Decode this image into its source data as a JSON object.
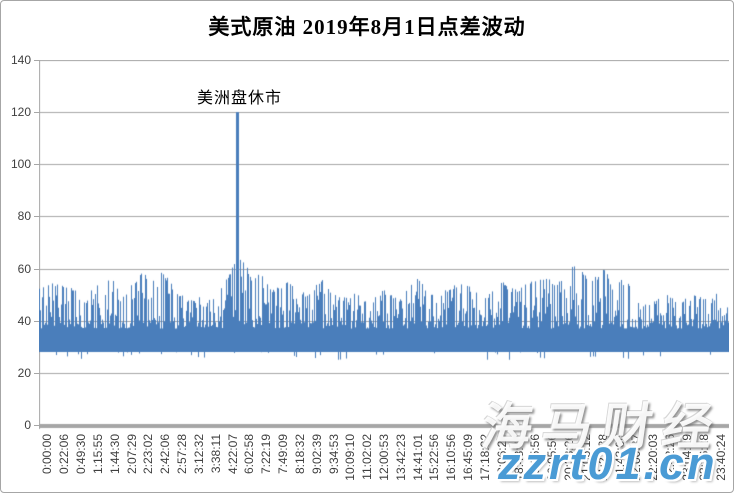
{
  "chart_data": {
    "type": "bar",
    "title": "美式原油 2019年8月1日点差波动",
    "annotation": {
      "text": "美洲盘休市",
      "target_x_label": "4:22:07",
      "value": 120
    },
    "ylim": [
      0,
      140
    ],
    "y_ticks": [
      0,
      20,
      40,
      60,
      80,
      100,
      120,
      140
    ],
    "x_tick_labels": [
      "0:00:00",
      "0:22:06",
      "0:49:30",
      "1:15:55",
      "1:44:30",
      "2:07:29",
      "2:23:02",
      "2:42:06",
      "2:57:28",
      "3:12:32",
      "3:38:11",
      "4:22:07",
      "6:02:58",
      "7:22:19",
      "7:49:09",
      "8:18:32",
      "9:02:39",
      "9:34:53",
      "10:09:10",
      "11:02:02",
      "12:00:53",
      "13:42:23",
      "14:41:01",
      "15:22:56",
      "16:10:56",
      "16:45:09",
      "17:18:32",
      "18:06:24",
      "18:43:44",
      "19:25:56",
      "20:05:56",
      "20:33:26",
      "21:05:12",
      "21:21:38",
      "21:43:06",
      "22:00:37",
      "22:20:03",
      "22:42:26",
      "23:04:29",
      "23:26:28",
      "23:40:24"
    ],
    "grid": "horizontal",
    "legend": "none",
    "bar_color": "#4a7ebb",
    "grid_color": "#a6a6a6",
    "axis_color": "#a6a6a6",
    "baseline_band": {
      "min": 25,
      "typical": 28,
      "solid_to": 40
    },
    "spike": {
      "x": 0.288,
      "v": 120
    },
    "upper_envelope": [
      [
        0,
        54
      ],
      [
        0.03,
        55
      ],
      [
        0.052,
        52
      ],
      [
        0.063,
        46
      ],
      [
        0.08,
        54
      ],
      [
        0.105,
        57
      ],
      [
        0.125,
        50
      ],
      [
        0.148,
        60
      ],
      [
        0.163,
        55
      ],
      [
        0.178,
        60
      ],
      [
        0.2,
        51
      ],
      [
        0.225,
        52
      ],
      [
        0.247,
        48
      ],
      [
        0.268,
        55
      ],
      [
        0.283,
        62
      ],
      [
        0.295,
        64
      ],
      [
        0.31,
        56
      ],
      [
        0.32,
        60
      ],
      [
        0.34,
        52
      ],
      [
        0.362,
        55
      ],
      [
        0.388,
        50
      ],
      [
        0.41,
        56
      ],
      [
        0.435,
        49
      ],
      [
        0.458,
        51
      ],
      [
        0.478,
        47
      ],
      [
        0.5,
        52
      ],
      [
        0.523,
        48
      ],
      [
        0.546,
        58
      ],
      [
        0.568,
        50
      ],
      [
        0.59,
        52
      ],
      [
        0.612,
        55
      ],
      [
        0.632,
        52
      ],
      [
        0.652,
        50
      ],
      [
        0.672,
        55
      ],
      [
        0.69,
        52
      ],
      [
        0.712,
        55
      ],
      [
        0.733,
        57
      ],
      [
        0.752,
        55
      ],
      [
        0.765,
        60
      ],
      [
        0.78,
        62
      ],
      [
        0.8,
        55
      ],
      [
        0.822,
        61
      ],
      [
        0.835,
        50
      ],
      [
        0.849,
        60
      ],
      [
        0.865,
        48
      ],
      [
        0.887,
        47
      ],
      [
        0.91,
        50
      ],
      [
        0.93,
        48
      ],
      [
        0.952,
        50
      ],
      [
        0.974,
        48
      ],
      [
        0.988,
        52
      ],
      [
        1,
        50
      ]
    ],
    "render_seed": 987654321
  },
  "watermark": {
    "brand": "海马财经",
    "url": "zzrt01.cn",
    "url_color": "#4a9bd5"
  }
}
